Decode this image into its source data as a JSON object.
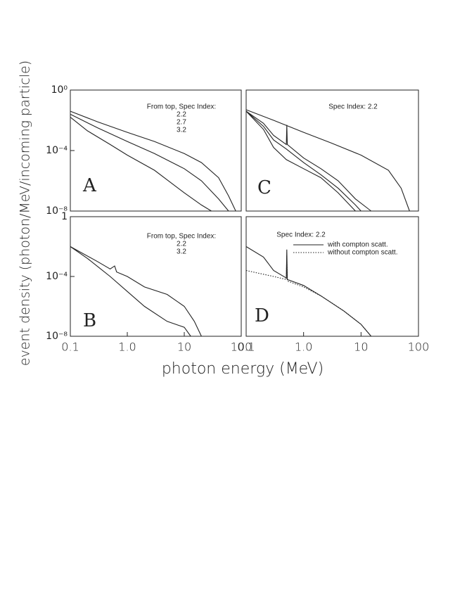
{
  "xlabel": "photon energy (MeV)",
  "ylabel": "event density (photon/MeV/incoming particle)",
  "chart_data": [
    {
      "type": "line",
      "panel_label": "A",
      "log_x": true,
      "log_y": true,
      "annotation": [
        "From top, Spec Index:",
        "2.2",
        "2.7",
        "3.2"
      ],
      "xlim": [
        0.1,
        100
      ],
      "ylim": [
        1e-08,
        1
      ],
      "yticks": [
        {
          "value": 1,
          "label": "10⁰"
        },
        {
          "value": 0.0001,
          "label": "10⁻⁴"
        },
        {
          "value": 1e-08,
          "label": "10⁻⁸"
        }
      ],
      "series": [
        {
          "color": "#222",
          "x": [
            0.1,
            0.3,
            1,
            3,
            10,
            20,
            40,
            60,
            80
          ],
          "values": [
            0.04,
            0.008,
            0.0016,
            0.0004,
            6.3e-05,
            1.6e-05,
            1.6e-06,
            1e-07,
            1e-08
          ]
        },
        {
          "color": "#222",
          "x": [
            0.1,
            0.3,
            1,
            3,
            10,
            20,
            40,
            60
          ],
          "values": [
            0.025,
            0.0032,
            0.0004,
            6.3e-05,
            6.3e-06,
            1e-06,
            6.3e-08,
            1e-08
          ]
        },
        {
          "color": "#222",
          "x": [
            0.1,
            0.2,
            0.5,
            1,
            3,
            10,
            20,
            30
          ],
          "values": [
            0.016,
            0.002,
            0.00025,
            5e-05,
            5e-06,
            1.6e-07,
            2.5e-08,
            1e-08
          ]
        }
      ]
    },
    {
      "type": "line",
      "panel_label": "C",
      "log_x": true,
      "log_y": true,
      "annotation": [
        "Spec Index: 2.2"
      ],
      "xlim": [
        0.1,
        100
      ],
      "ylim": [
        1e-08,
        1
      ],
      "series": [
        {
          "color": "#222",
          "x": [
            0.1,
            0.3,
            1,
            3,
            10,
            30,
            50,
            70
          ],
          "values": [
            0.05,
            0.01,
            0.0016,
            0.00032,
            5e-05,
            5e-06,
            3.2e-07,
            1e-08
          ]
        },
        {
          "color": "#222",
          "x": [
            0.1,
            0.2,
            0.3,
            0.5,
            0.51,
            0.52,
            1,
            2,
            4,
            8,
            15
          ],
          "values": [
            0.04,
            0.0063,
            0.001,
            0.00025,
            0.005,
            0.00025,
            3.2e-05,
            6.3e-06,
            1e-06,
            6.3e-08,
            1e-08
          ]
        },
        {
          "color": "#222",
          "x": [
            0.1,
            0.2,
            0.3,
            0.5,
            1,
            2,
            4,
            8,
            10
          ],
          "values": [
            0.04,
            0.004,
            0.0005,
            0.000126,
            1.6e-05,
            2.5e-06,
            3.2e-07,
            2.5e-08,
            1e-08
          ]
        },
        {
          "color": "#222",
          "x": [
            0.1,
            0.2,
            0.3,
            0.5,
            1,
            2,
            4,
            8
          ],
          "values": [
            0.04,
            0.0025,
            0.00016,
            2.5e-05,
            6.3e-06,
            1.6e-06,
            1.6e-07,
            1e-08
          ]
        }
      ]
    },
    {
      "type": "line",
      "panel_label": "B",
      "log_x": true,
      "log_y": true,
      "annotation": [
        "From top, Spec Index:",
        "2.2",
        "3.2"
      ],
      "xlim": [
        0.1,
        100
      ],
      "ylim": [
        1e-08,
        1
      ],
      "xticks": [
        0.1,
        {
          "value": 1,
          "label": "1.0"
        },
        10,
        100
      ],
      "yticks": [
        1,
        {
          "value": 0.0001,
          "label": "10⁻⁴"
        },
        {
          "value": 1e-08,
          "label": "10⁻⁸"
        }
      ],
      "series": [
        {
          "color": "#222",
          "x": [
            0.1,
            0.3,
            0.5,
            0.6,
            0.65,
            1,
            2,
            5,
            10,
            15,
            20
          ],
          "values": [
            0.01,
            0.001,
            0.00032,
            0.0005,
            0.0002,
            0.0001,
            2e-05,
            6.3e-06,
            1e-06,
            1e-07,
            1e-08
          ]
        },
        {
          "color": "#222",
          "x": [
            0.1,
            0.2,
            0.5,
            1,
            2,
            5,
            10,
            13
          ],
          "values": [
            0.01,
            0.0016,
            0.0001,
            1e-05,
            1e-06,
            1e-07,
            4e-08,
            1e-08
          ]
        }
      ]
    },
    {
      "type": "line",
      "panel_label": "D",
      "log_x": true,
      "log_y": true,
      "annotation": [
        "Spec Index: 2.2"
      ],
      "xlim": [
        0.1,
        100
      ],
      "ylim": [
        1e-08,
        1
      ],
      "xticks": [
        0.1,
        {
          "value": 1,
          "label": "1.0"
        },
        10,
        100
      ],
      "series": [
        {
          "name": "with compton scatt.",
          "color": "#222",
          "linestyle": "solid",
          "x": [
            0.1,
            0.2,
            0.3,
            0.5,
            0.51,
            0.52,
            1,
            2,
            5,
            10,
            15
          ],
          "values": [
            0.01,
            0.002,
            0.00025,
            7.9e-05,
            0.0063,
            6.3e-05,
            2.5e-05,
            5e-06,
            5e-07,
            6.3e-08,
            1e-08
          ]
        },
        {
          "name": "without compton scatt.",
          "color": "#222",
          "linestyle": "dotted",
          "x": [
            0.1,
            0.3,
            0.5,
            0.51,
            0.52,
            1,
            2,
            5,
            10,
            15
          ],
          "values": [
            0.00025,
            0.0001,
            6.3e-05,
            0.0025,
            5e-05,
            2e-05,
            5e-06,
            5e-07,
            6.3e-08,
            1e-08
          ]
        }
      ]
    }
  ]
}
